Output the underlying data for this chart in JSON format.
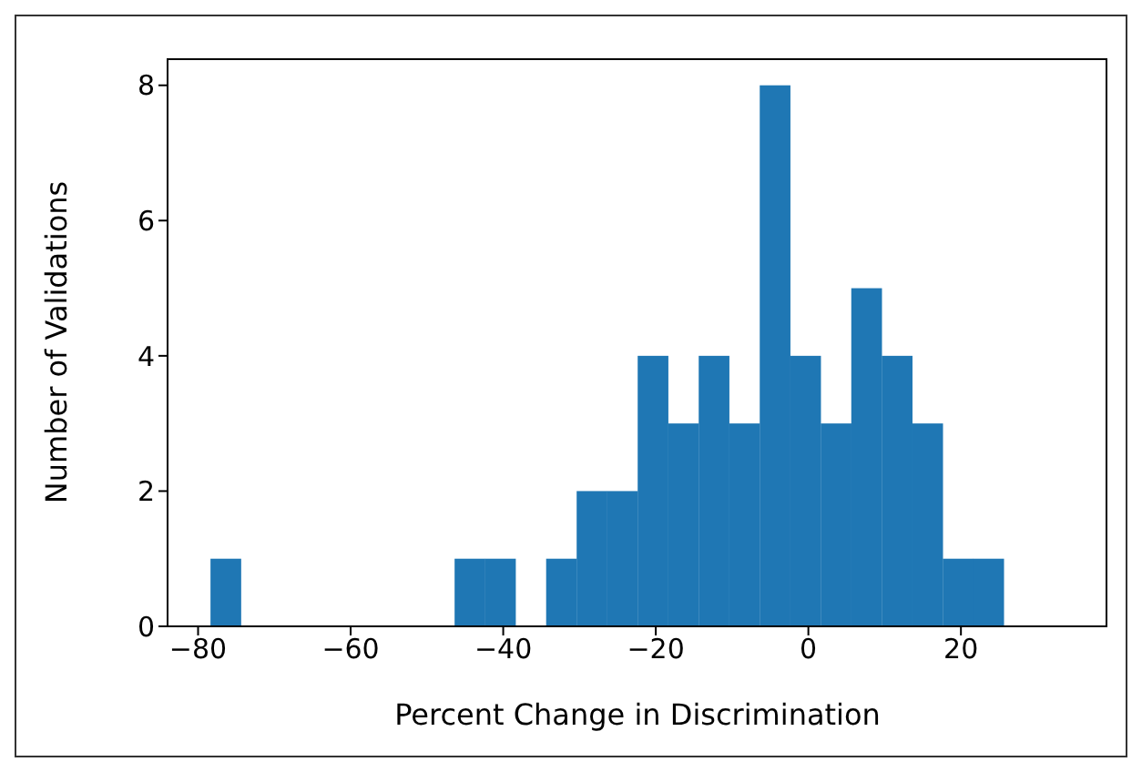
{
  "chart_data": {
    "type": "histogram",
    "xlabel": "Percent Change in Discrimination",
    "ylabel": "Number of Validations",
    "bins": [
      -78.4,
      -74.4,
      -70.4,
      -66.4,
      -62.4,
      -58.4,
      -54.4,
      -50.4,
      -46.4,
      -42.4,
      -38.4,
      -34.4,
      -30.4,
      -26.4,
      -22.4,
      -18.4,
      -14.4,
      -10.4,
      -6.4,
      -2.4,
      1.6,
      5.6,
      9.6,
      13.6,
      17.6,
      21.6,
      25.6
    ],
    "values": [
      1,
      0,
      0,
      0,
      0,
      0,
      0,
      0,
      1,
      1,
      0,
      1,
      2,
      2,
      4,
      3,
      4,
      3,
      8,
      4,
      3,
      5,
      4,
      3,
      1,
      1
    ],
    "color": "#1f77b4",
    "xlim": [
      -84,
      39.2
    ],
    "xticks": [
      -80,
      -60,
      -40,
      -20,
      0,
      20
    ],
    "ylim": [
      0,
      8.4
    ],
    "yticks": [
      0,
      2,
      4,
      6,
      8
    ],
    "grid": false,
    "legend": false
  }
}
